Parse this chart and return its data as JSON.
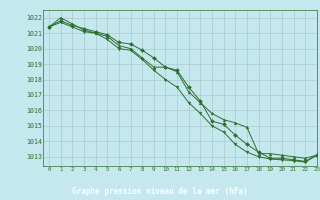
{
  "title": "Graphe pression niveau de la mer (hPa)",
  "bg_color": "#c5e8ee",
  "plot_bg_color": "#c5e8ee",
  "label_bar_color": "#2d6e2d",
  "label_text_color": "#ffffff",
  "line_color": "#2d6e2d",
  "grid_color": "#b0c8cc",
  "xlim": [
    -0.5,
    23
  ],
  "ylim": [
    1012.4,
    1022.5
  ],
  "yticks": [
    1013,
    1014,
    1015,
    1016,
    1017,
    1018,
    1019,
    1020,
    1021,
    1022
  ],
  "xticks": [
    0,
    1,
    2,
    3,
    4,
    5,
    6,
    7,
    8,
    9,
    10,
    11,
    12,
    13,
    14,
    15,
    16,
    17,
    18,
    19,
    20,
    21,
    22,
    23
  ],
  "series1_x": [
    0,
    1,
    2,
    3,
    4,
    5,
    6,
    7,
    8,
    9,
    10,
    11,
    12,
    13,
    14,
    15,
    16,
    17,
    18,
    19,
    20,
    21,
    22,
    23
  ],
  "series1_y": [
    1021.4,
    1022.0,
    1021.6,
    1021.2,
    1021.0,
    1020.8,
    1020.2,
    1020.0,
    1019.4,
    1018.8,
    1018.8,
    1018.5,
    1017.2,
    1016.5,
    1015.8,
    1015.4,
    1015.2,
    1014.9,
    1013.2,
    1013.2,
    1013.1,
    1013.0,
    1012.9,
    1013.1
  ],
  "series2_x": [
    0,
    1,
    2,
    3,
    4,
    5,
    6,
    7,
    8,
    9,
    10,
    11,
    12,
    13,
    14,
    15,
    16,
    17,
    18,
    19,
    20,
    21,
    22,
    23
  ],
  "series2_y": [
    1021.4,
    1021.8,
    1021.5,
    1021.3,
    1021.1,
    1020.9,
    1020.4,
    1020.3,
    1019.9,
    1019.4,
    1018.8,
    1018.6,
    1017.5,
    1016.6,
    1015.3,
    1015.1,
    1014.4,
    1013.8,
    1013.3,
    1012.9,
    1012.9,
    1012.8,
    1012.7,
    1013.1
  ],
  "series3_x": [
    0,
    1,
    2,
    3,
    4,
    5,
    6,
    7,
    8,
    9,
    10,
    11,
    12,
    13,
    14,
    15,
    16,
    17,
    18,
    19,
    20,
    21,
    22,
    23
  ],
  "series3_y": [
    1021.4,
    1021.7,
    1021.4,
    1021.1,
    1021.0,
    1020.6,
    1020.0,
    1019.9,
    1019.3,
    1018.6,
    1018.0,
    1017.5,
    1016.5,
    1015.8,
    1015.0,
    1014.6,
    1013.8,
    1013.3,
    1013.0,
    1012.85,
    1012.8,
    1012.75,
    1012.65,
    1013.1
  ]
}
